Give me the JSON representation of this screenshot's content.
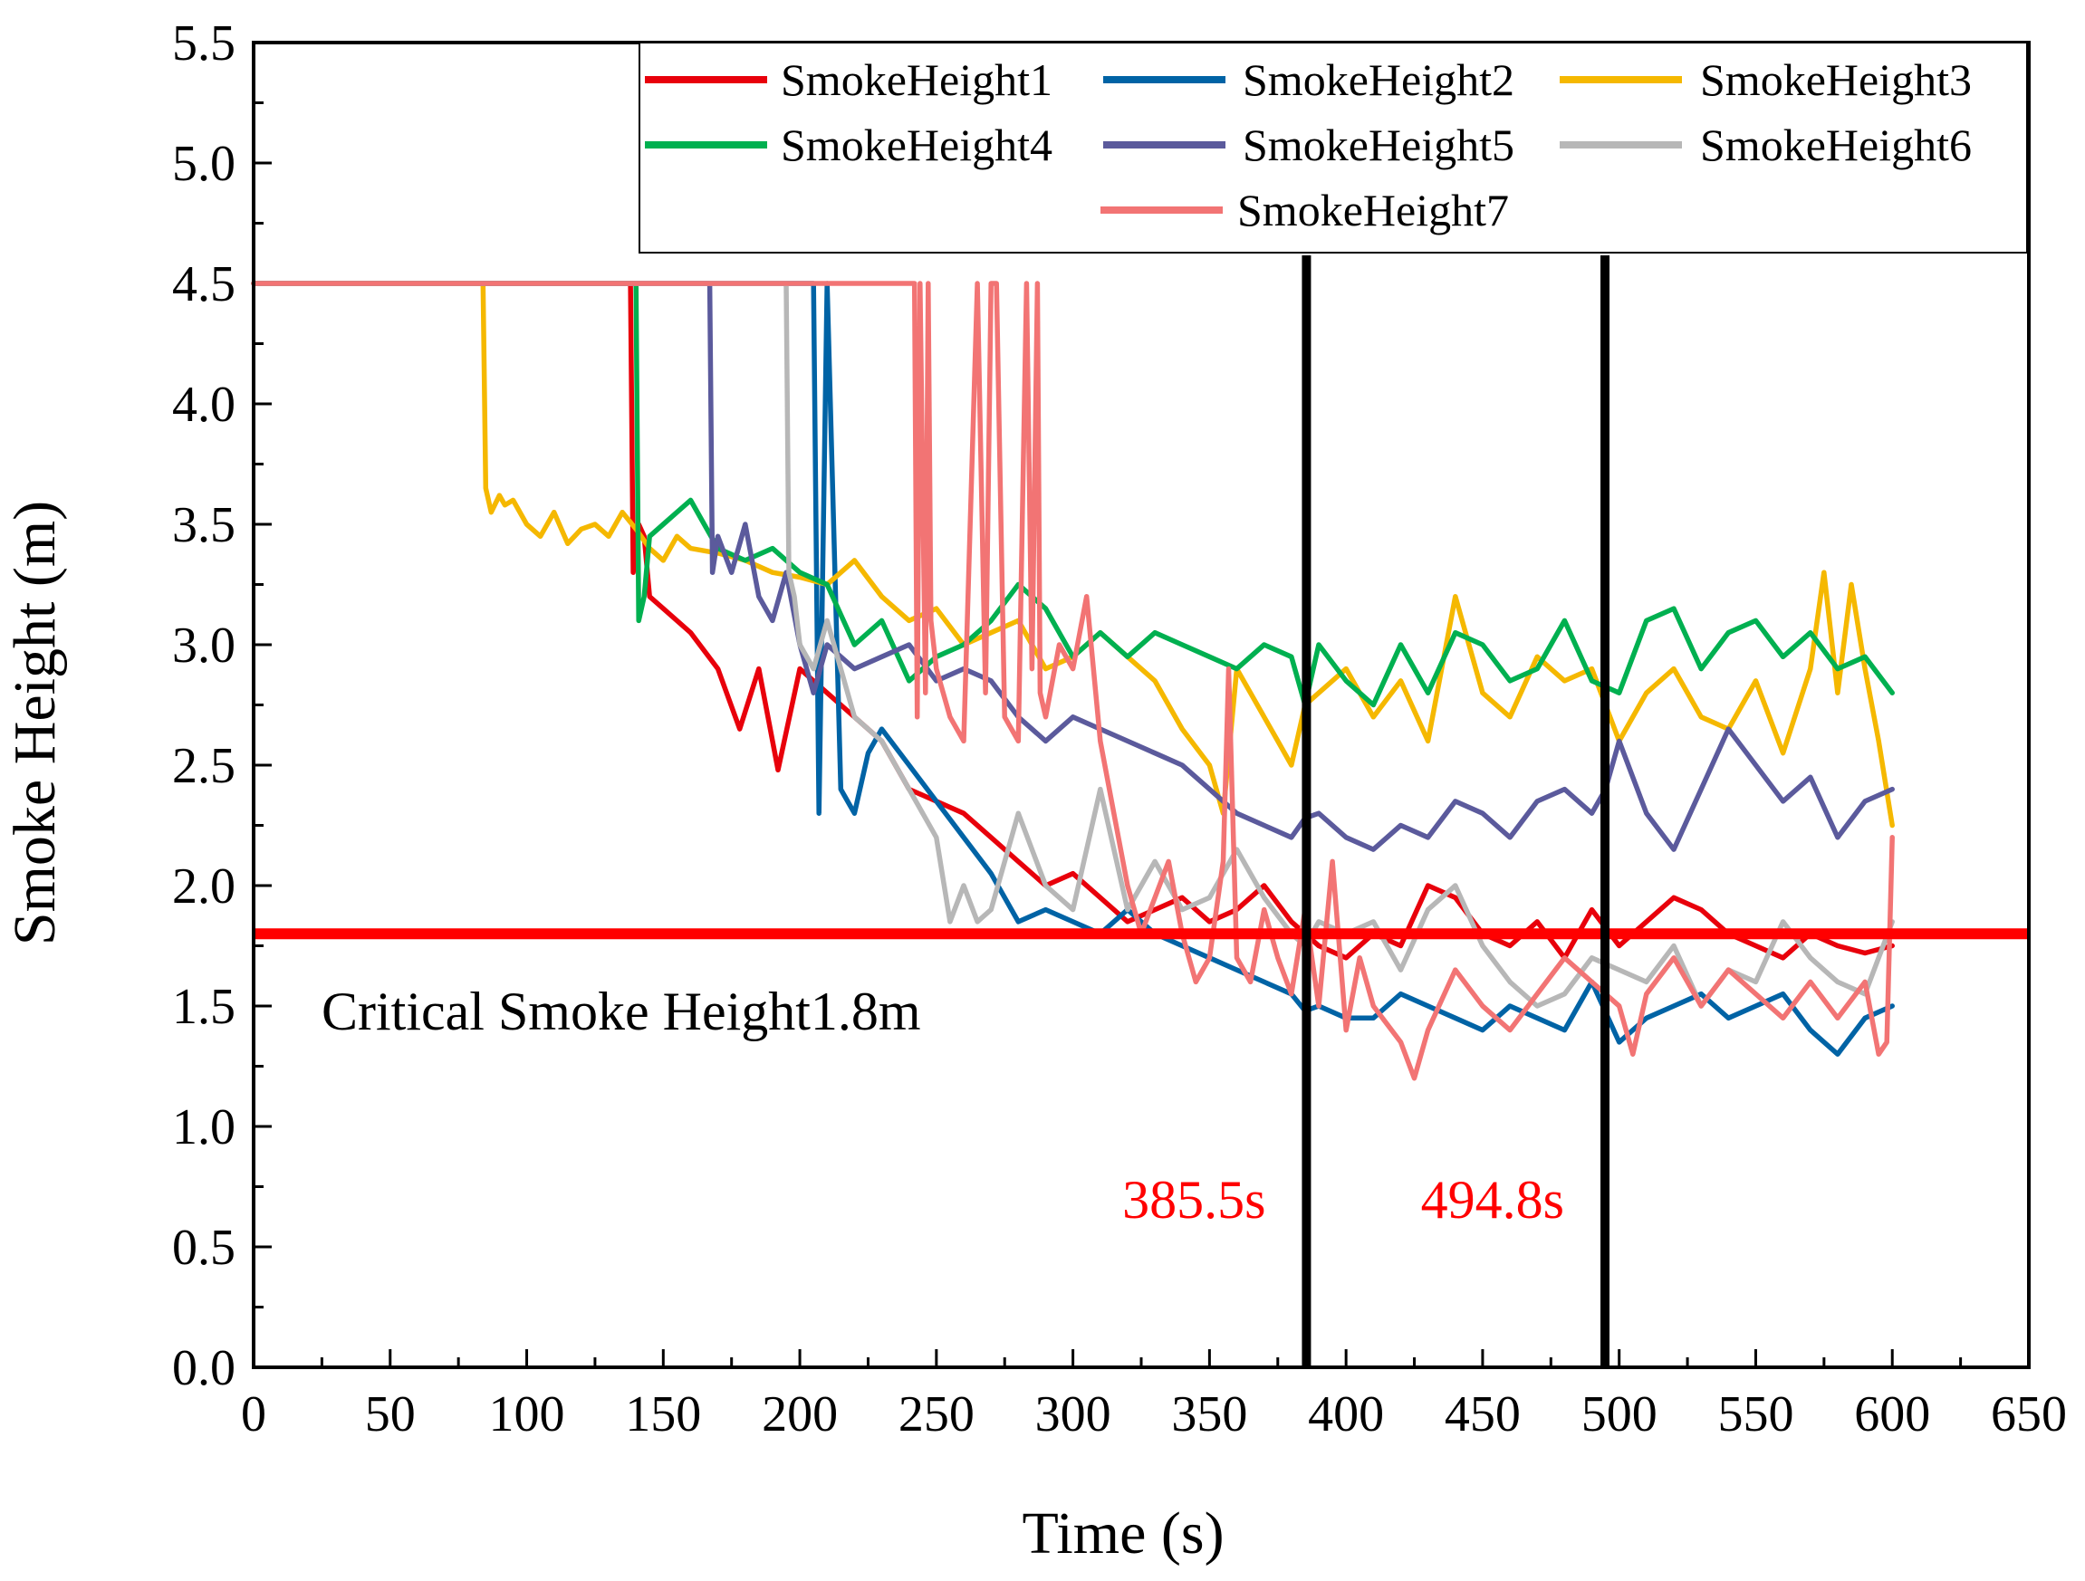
{
  "chart_data": {
    "type": "line",
    "xlabel": "Time (s)",
    "ylabel": "Smoke Height (m)",
    "xlim": [
      0,
      650
    ],
    "ylim": [
      0,
      5.5
    ],
    "xticks": [
      0,
      50,
      100,
      150,
      200,
      250,
      300,
      350,
      400,
      450,
      500,
      550,
      600,
      650
    ],
    "yticks": [
      0.0,
      0.5,
      1.0,
      1.5,
      2.0,
      2.5,
      3.0,
      3.5,
      4.0,
      4.5,
      5.0,
      5.5
    ],
    "xtick_labels": [
      "0",
      "50",
      "100",
      "150",
      "200",
      "250",
      "300",
      "350",
      "400",
      "450",
      "500",
      "550",
      "600",
      "650"
    ],
    "ytick_labels": [
      "0.0",
      "0.5",
      "1.0",
      "1.5",
      "2.0",
      "2.5",
      "3.0",
      "3.5",
      "4.0",
      "4.5",
      "5.0",
      "5.5"
    ],
    "legend_position": "top-right",
    "series": [
      {
        "name": "SmokeHeight1",
        "color": "#e8000b",
        "x": [
          0,
          138,
          139,
          141,
          143,
          145,
          150,
          160,
          170,
          178,
          185,
          192,
          200,
          210,
          220,
          230,
          240,
          250,
          260,
          270,
          280,
          290,
          300,
          310,
          320,
          330,
          340,
          350,
          360,
          370,
          380,
          385,
          390,
          400,
          410,
          420,
          430,
          440,
          450,
          460,
          470,
          480,
          490,
          500,
          510,
          520,
          530,
          540,
          550,
          560,
          570,
          580,
          590,
          600
        ],
        "y": [
          4.5,
          4.5,
          3.3,
          3.5,
          3.45,
          3.2,
          3.15,
          3.05,
          2.9,
          2.65,
          2.9,
          2.48,
          2.9,
          2.8,
          2.7,
          2.6,
          2.4,
          2.35,
          2.3,
          2.2,
          2.1,
          2.0,
          2.05,
          1.95,
          1.85,
          1.9,
          1.95,
          1.85,
          1.9,
          2.0,
          1.85,
          1.8,
          1.75,
          1.7,
          1.8,
          1.75,
          2.0,
          1.95,
          1.8,
          1.75,
          1.85,
          1.7,
          1.9,
          1.75,
          1.85,
          1.95,
          1.9,
          1.8,
          1.75,
          1.7,
          1.8,
          1.75,
          1.72,
          1.75
        ]
      },
      {
        "name": "SmokeHeight2",
        "color": "#0063a5",
        "x": [
          0,
          205,
          207,
          210,
          215,
          220,
          225,
          230,
          240,
          250,
          260,
          270,
          280,
          290,
          300,
          310,
          320,
          330,
          340,
          350,
          360,
          370,
          380,
          385,
          390,
          400,
          410,
          420,
          430,
          440,
          450,
          460,
          470,
          480,
          490,
          500,
          510,
          520,
          530,
          540,
          550,
          560,
          570,
          580,
          590,
          600
        ],
        "y": [
          4.5,
          4.5,
          2.3,
          4.5,
          2.4,
          2.3,
          2.55,
          2.65,
          2.5,
          2.35,
          2.2,
          2.05,
          1.85,
          1.9,
          1.85,
          1.8,
          1.9,
          1.8,
          1.75,
          1.7,
          1.65,
          1.6,
          1.55,
          1.48,
          1.5,
          1.45,
          1.45,
          1.55,
          1.5,
          1.45,
          1.4,
          1.5,
          1.45,
          1.4,
          1.6,
          1.35,
          1.45,
          1.5,
          1.55,
          1.45,
          1.5,
          1.55,
          1.4,
          1.3,
          1.45,
          1.5
        ]
      },
      {
        "name": "SmokeHeight3",
        "color": "#f5b800",
        "x": [
          0,
          84,
          85,
          87,
          90,
          92,
          95,
          100,
          105,
          110,
          115,
          120,
          125,
          130,
          135,
          140,
          145,
          150,
          155,
          160,
          170,
          180,
          190,
          200,
          210,
          220,
          230,
          240,
          250,
          260,
          270,
          280,
          290,
          300,
          310,
          320,
          330,
          340,
          350,
          355,
          360,
          365,
          370,
          375,
          380,
          385,
          390,
          400,
          410,
          420,
          430,
          440,
          450,
          460,
          470,
          480,
          490,
          500,
          510,
          520,
          530,
          540,
          550,
          560,
          570,
          575,
          580,
          585,
          590,
          595,
          600
        ],
        "y": [
          4.5,
          4.5,
          3.65,
          3.55,
          3.62,
          3.58,
          3.6,
          3.5,
          3.45,
          3.55,
          3.42,
          3.48,
          3.5,
          3.45,
          3.55,
          3.48,
          3.4,
          3.35,
          3.45,
          3.4,
          3.38,
          3.35,
          3.3,
          3.28,
          3.25,
          3.35,
          3.2,
          3.1,
          3.15,
          3.0,
          3.05,
          3.1,
          2.9,
          2.95,
          3.05,
          2.95,
          2.85,
          2.65,
          2.5,
          2.3,
          2.9,
          2.8,
          2.7,
          2.6,
          2.5,
          2.75,
          2.8,
          2.9,
          2.7,
          2.85,
          2.6,
          3.2,
          2.8,
          2.7,
          2.95,
          2.85,
          2.9,
          2.6,
          2.8,
          2.9,
          2.7,
          2.65,
          2.85,
          2.55,
          2.9,
          3.3,
          2.8,
          3.25,
          2.9,
          2.6,
          2.25
        ]
      },
      {
        "name": "SmokeHeight4",
        "color": "#00b050",
        "x": [
          0,
          140,
          141,
          143,
          145,
          150,
          155,
          160,
          165,
          170,
          180,
          190,
          200,
          210,
          220,
          230,
          240,
          250,
          260,
          270,
          280,
          290,
          300,
          310,
          320,
          330,
          340,
          350,
          360,
          370,
          380,
          385,
          390,
          400,
          410,
          420,
          430,
          440,
          450,
          460,
          470,
          480,
          490,
          500,
          510,
          520,
          530,
          540,
          550,
          560,
          570,
          580,
          590,
          600
        ],
        "y": [
          4.5,
          4.5,
          3.1,
          3.2,
          3.45,
          3.5,
          3.55,
          3.6,
          3.5,
          3.4,
          3.35,
          3.4,
          3.3,
          3.25,
          3.0,
          3.1,
          2.85,
          2.95,
          3.0,
          3.1,
          3.25,
          3.15,
          2.95,
          3.05,
          2.95,
          3.05,
          3.0,
          2.95,
          2.9,
          3.0,
          2.95,
          2.75,
          3.0,
          2.85,
          2.75,
          3.0,
          2.8,
          3.05,
          3.0,
          2.85,
          2.9,
          3.1,
          2.85,
          2.8,
          3.1,
          3.15,
          2.9,
          3.05,
          3.1,
          2.95,
          3.05,
          2.9,
          2.95,
          2.8
        ]
      },
      {
        "name": "SmokeHeight5",
        "color": "#5b5a9c",
        "x": [
          0,
          167,
          168,
          170,
          175,
          180,
          185,
          190,
          195,
          200,
          205,
          210,
          220,
          230,
          240,
          250,
          260,
          270,
          280,
          290,
          300,
          310,
          320,
          330,
          340,
          350,
          360,
          370,
          380,
          385,
          390,
          400,
          410,
          420,
          430,
          440,
          450,
          460,
          470,
          480,
          490,
          495,
          500,
          510,
          520,
          530,
          540,
          550,
          560,
          570,
          580,
          590,
          600
        ],
        "y": [
          4.5,
          4.5,
          3.3,
          3.45,
          3.3,
          3.5,
          3.2,
          3.1,
          3.3,
          3.0,
          2.8,
          3.0,
          2.9,
          2.95,
          3.0,
          2.85,
          2.9,
          2.85,
          2.7,
          2.6,
          2.7,
          2.65,
          2.6,
          2.55,
          2.5,
          2.4,
          2.3,
          2.25,
          2.2,
          2.28,
          2.3,
          2.2,
          2.15,
          2.25,
          2.2,
          2.35,
          2.3,
          2.2,
          2.35,
          2.4,
          2.3,
          2.4,
          2.6,
          2.3,
          2.15,
          2.4,
          2.65,
          2.5,
          2.35,
          2.45,
          2.2,
          2.35,
          2.4
        ]
      },
      {
        "name": "SmokeHeight6",
        "color": "#b7b7b7",
        "x": [
          0,
          195,
          196,
          198,
          200,
          205,
          210,
          220,
          230,
          240,
          250,
          255,
          260,
          265,
          270,
          280,
          290,
          300,
          310,
          320,
          330,
          340,
          350,
          360,
          370,
          380,
          385,
          390,
          400,
          410,
          420,
          430,
          440,
          450,
          460,
          470,
          480,
          490,
          500,
          510,
          520,
          530,
          540,
          550,
          560,
          570,
          580,
          590,
          600
        ],
        "y": [
          4.5,
          4.5,
          3.3,
          3.2,
          3.0,
          2.9,
          3.1,
          2.7,
          2.6,
          2.4,
          2.2,
          1.85,
          2.0,
          1.85,
          1.9,
          2.3,
          2.0,
          1.9,
          2.4,
          1.9,
          2.1,
          1.9,
          1.95,
          2.15,
          1.95,
          1.8,
          1.75,
          1.85,
          1.8,
          1.85,
          1.65,
          1.9,
          2.0,
          1.75,
          1.6,
          1.5,
          1.55,
          1.7,
          1.65,
          1.6,
          1.75,
          1.5,
          1.65,
          1.6,
          1.85,
          1.7,
          1.6,
          1.55,
          1.85
        ]
      },
      {
        "name": "SmokeHeight7",
        "color": "#f27474",
        "x": [
          0,
          242,
          243,
          244,
          246,
          247,
          248,
          250,
          255,
          260,
          265,
          268,
          270,
          272,
          275,
          280,
          283,
          285,
          287,
          288,
          290,
          295,
          300,
          305,
          310,
          315,
          320,
          325,
          330,
          335,
          340,
          345,
          350,
          355,
          357,
          360,
          365,
          370,
          375,
          380,
          385,
          390,
          395,
          400,
          405,
          410,
          420,
          425,
          430,
          440,
          450,
          460,
          470,
          480,
          490,
          500,
          505,
          510,
          520,
          530,
          540,
          550,
          560,
          570,
          580,
          590,
          595,
          598,
          600
        ],
        "y": [
          4.5,
          4.5,
          2.7,
          4.5,
          2.8,
          4.5,
          3.1,
          2.9,
          2.7,
          2.6,
          4.5,
          2.8,
          4.5,
          4.5,
          2.7,
          2.6,
          4.5,
          2.9,
          4.5,
          2.8,
          2.7,
          3.0,
          2.9,
          3.2,
          2.6,
          2.3,
          2.0,
          1.8,
          1.95,
          2.1,
          1.8,
          1.6,
          1.7,
          2.1,
          2.9,
          1.7,
          1.6,
          1.9,
          1.7,
          1.55,
          1.9,
          1.5,
          2.1,
          1.4,
          1.7,
          1.5,
          1.35,
          1.2,
          1.4,
          1.65,
          1.5,
          1.4,
          1.55,
          1.7,
          1.6,
          1.5,
          1.3,
          1.55,
          1.7,
          1.5,
          1.65,
          1.55,
          1.45,
          1.6,
          1.45,
          1.6,
          1.3,
          1.35,
          2.2
        ]
      }
    ],
    "reference_lines": [
      {
        "orientation": "horizontal",
        "value": 1.8,
        "color": "#ff0000",
        "label": "Critical Smoke Height1.8m",
        "label_color": "#000000"
      },
      {
        "orientation": "vertical",
        "value": 385.5,
        "color": "#000000",
        "label": "385.5s",
        "label_color": "#ff0000"
      },
      {
        "orientation": "vertical",
        "value": 494.8,
        "color": "#000000",
        "label": "494.8s",
        "label_color": "#ff0000"
      }
    ]
  }
}
